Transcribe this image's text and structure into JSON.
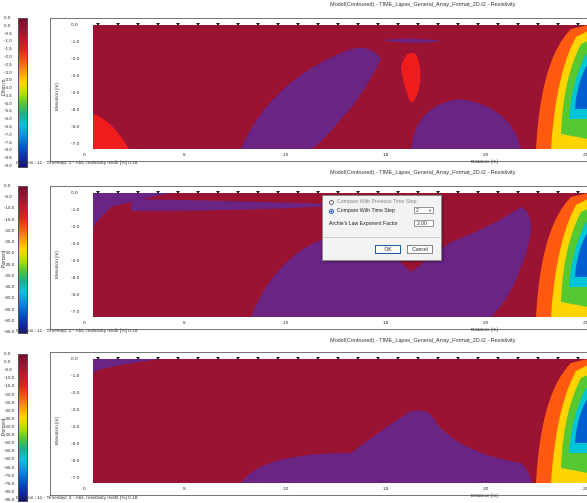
{
  "colors": {
    "bg_red": "#9b1333",
    "violet": "#6a2484",
    "bright_red": "#ee1c1c",
    "scale": [
      "#7b0d2b",
      "#9b1333",
      "#c4182c",
      "#e8231c",
      "#ff5a10",
      "#ff9a00",
      "#ffd400",
      "#b8e000",
      "#55c832",
      "#11b58a",
      "#00c4d8",
      "#0095e6",
      "#005ed1",
      "#1030b0",
      "#120f7a"
    ]
  },
  "panels": [
    {
      "title": "Model(Contoured) - TIME_Lapse_General_Array_Format_2D.t2 - Resistivity",
      "status": "Iteration : 11 - Timestep: 1 - Abs. resistivity misfit [%] 0.18",
      "legend_unit": "Ohm.m",
      "legend_labels": [
        "0.0",
        "0.0",
        "-0.5",
        "-1.0",
        "-1.5",
        "-2.0",
        "-2.5",
        "-3.0",
        "-3.5",
        "-4.0",
        "-4.5",
        "-5.0",
        "-5.5",
        "-6.0",
        "-6.5",
        "-7.0",
        "-7.5",
        "-8.0",
        "-8.5",
        "-9.0"
      ],
      "y_ticks": [
        "0.0",
        "-1.0",
        "-2.0",
        "-3.0",
        "-4.0",
        "-5.0",
        "-6.0",
        "-7.0"
      ],
      "x_ticks": [
        "0",
        "5",
        "10",
        "15",
        "20",
        "25"
      ],
      "ylabel": "Elevation [m]",
      "xlabel": "Distance [m]"
    },
    {
      "title": "Model(Contoured) - TIME_Lapse_General_Array_Format_2D.t2 - Resistivity",
      "status": "Iteration : 11 - Timestep: 2 - Abs. resistivity misfit [%] 0.19",
      "legend_unit": "Percent",
      "legend_labels": [
        "0.0",
        "-5.0",
        "-10.0",
        "-15.0",
        "-20.0",
        "-25.0",
        "-30.0",
        "-35.0",
        "-40.0",
        "-45.0",
        "-50.0",
        "-55.0",
        "-60.0",
        "-65.0"
      ],
      "y_ticks": [
        "0.0",
        "-1.0",
        "-2.0",
        "-3.0",
        "-4.0",
        "-5.0",
        "-6.0",
        "-7.0"
      ],
      "x_ticks": [
        "0",
        "5",
        "10",
        "15",
        "20",
        "25"
      ],
      "ylabel": "Elevation [m]",
      "xlabel": "Distance [m]"
    },
    {
      "title": "Model(Contoured) - TIME_Lapse_General_Array_Format_2D.t2 - Resistivity",
      "status": "Iteration : 11 - Timestep: 3 - Abs. resistivity misfit [%] 0.18",
      "legend_unit": "Percent",
      "legend_labels": [
        "0.0",
        "0.0",
        "-5.0",
        "-10.0",
        "-15.0",
        "-20.0",
        "-25.0",
        "-30.0",
        "-35.0",
        "-40.0",
        "-45.0",
        "-50.0",
        "-55.0",
        "-60.0",
        "-65.0",
        "-70.0",
        "-75.0",
        "-80.0",
        "-85.0"
      ],
      "y_ticks": [
        "0.0",
        "-1.0",
        "-2.0",
        "-3.0",
        "-4.0",
        "-5.0",
        "-6.0",
        "-7.0"
      ],
      "x_ticks": [
        "0",
        "5",
        "10",
        "15",
        "20",
        "25"
      ],
      "ylabel": "Elevation [m]",
      "xlabel": "Distance [m]"
    }
  ],
  "dialog": {
    "option_previous": "Compare With Previous Time Step",
    "option_timestep": "Compare With Time Step",
    "timestep_value": "2",
    "archie_label": "Archie's Law Exponent Factor",
    "archie_value": "2.00",
    "ok_label": "OK",
    "cancel_label": "Cancel"
  }
}
